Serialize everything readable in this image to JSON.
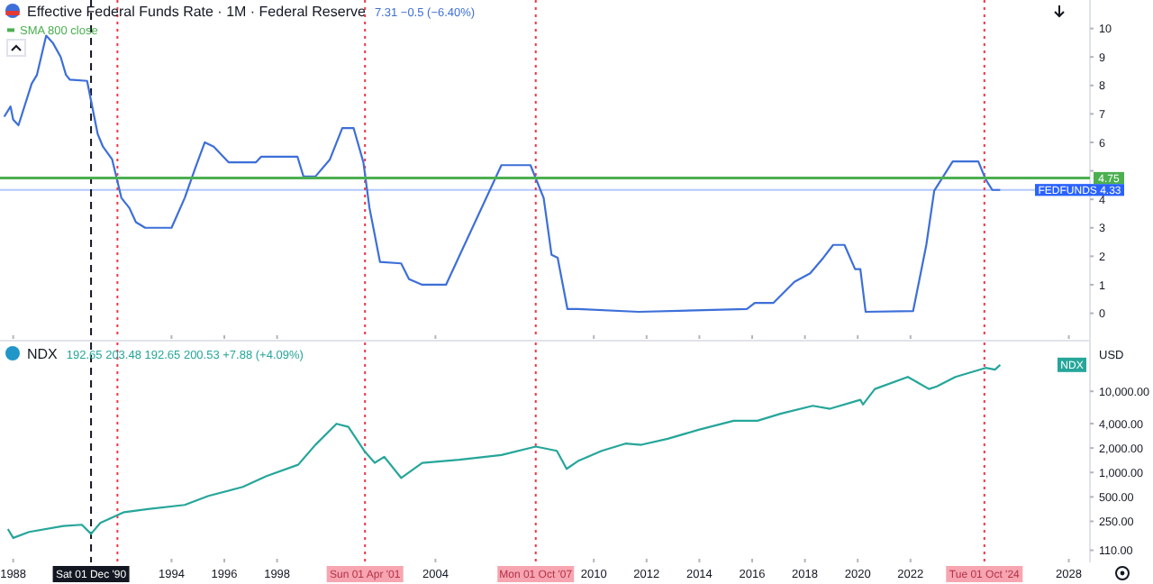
{
  "chart_data": [
    {
      "type": "line",
      "title": "Effective Federal Funds Rate · 1M · Federal Reserve",
      "subtitle": "7.31 −0.5 (−6.40%)",
      "legend": "top left",
      "tick_labels": "y",
      "x": [
        1987.66,
        1987.9,
        1988.0,
        1988.2,
        1988.7,
        1988.9,
        1989.25,
        1989.5,
        1989.8,
        1990.0,
        1990.15,
        1990.8,
        1991.2,
        1991.4,
        1991.75,
        1992.1,
        1992.4,
        1992.65,
        1993.0,
        1994.0,
        1994.5,
        1994.9,
        1995.26,
        1995.6,
        1996.16,
        1997.2,
        1997.4,
        1998.77,
        1999.0,
        1999.45,
        2000.0,
        2000.47,
        2000.9,
        2001.27,
        2001.5,
        2001.9,
        2002.7,
        2003.0,
        2003.5,
        2004.4,
        2006.5,
        2007.6,
        2008.1,
        2008.4,
        2008.63,
        2009.0,
        2009.4,
        2011.7,
        2015.8,
        2016.1,
        2016.8,
        2017.6,
        2018.2,
        2018.7,
        2019.07,
        2019.5,
        2019.9,
        2020.1,
        2020.3,
        2022.1,
        2022.6,
        2022.9,
        2023.6,
        2024.57,
        2024.85,
        2025.1,
        2025.4
      ],
      "series": [
        {
          "color": "#3d6fd8",
          "values": [
            6.9,
            7.26,
            6.8,
            6.6,
            8.06,
            8.37,
            9.75,
            9.5,
            9.0,
            8.37,
            8.2,
            8.16,
            6.3,
            5.85,
            5.4,
            4.05,
            3.7,
            3.2,
            3.0,
            3.0,
            4.05,
            5.1,
            6.0,
            5.85,
            5.3,
            5.3,
            5.5,
            5.5,
            4.8,
            4.8,
            5.4,
            6.5,
            6.5,
            5.3,
            3.7,
            1.8,
            1.75,
            1.2,
            1.0,
            1.0,
            5.2,
            5.2,
            4.05,
            2.05,
            1.95,
            0.15,
            0.15,
            0.05,
            0.15,
            0.36,
            0.36,
            1.1,
            1.4,
            1.95,
            2.4,
            2.4,
            1.55,
            1.55,
            0.05,
            0.08,
            2.4,
            4.3,
            5.33,
            5.33,
            4.7,
            4.33,
            4.33
          ]
        },
        {
          "name": "SMA 800 close",
          "color": "#4caf50",
          "x": [
            1987.5,
            2028.8
          ],
          "values": [
            4.75,
            4.75
          ],
          "value_labels": [
            null,
            "4.75"
          ]
        }
      ],
      "xlim": [
        1987.5,
        2028.8
      ],
      "xticks": [
        1988,
        1994,
        1996,
        1998,
        2004,
        2010,
        2012,
        2014,
        2016,
        2018,
        2020,
        2022,
        2028
      ],
      "ylim": [
        -0.9,
        11
      ],
      "yticks": [
        0,
        1,
        2,
        3,
        4,
        {
          "value": 5,
          "label": null
        },
        6,
        7,
        8,
        9,
        10
      ],
      "ref_lines": [
        {
          "axis": "y",
          "value": 4.33,
          "label": "FEDFUNDS 4.33",
          "color": "#2962ff"
        },
        {
          "axis": "x",
          "value": 1990.95,
          "color": "#131722",
          "line_style": "dashed"
        },
        {
          "axis": "x",
          "value": 1991.95,
          "color": "#f23645",
          "line_style": "dotted"
        },
        {
          "axis": "x",
          "value": 2001.33,
          "color": "#f23645",
          "line_style": "dotted"
        },
        {
          "axis": "x",
          "value": 2007.8,
          "color": "#f23645",
          "line_style": "dotted"
        },
        {
          "axis": "x",
          "value": 2024.8,
          "color": "#f23645",
          "line_style": "dotted"
        }
      ]
    },
    {
      "type": "line",
      "title": "NDX",
      "subtitle": "192.65 203.48 192.65 200.53 +7.88 (+4.09%)",
      "log": true,
      "annotations": [
        "USD"
      ],
      "x": [
        1987.8,
        1988.0,
        1988.6,
        1989.9,
        1990.6,
        1990.95,
        1991.3,
        1992.2,
        1993.1,
        1994.5,
        1995.4,
        1996.7,
        1997.6,
        1998.8,
        1999.45,
        2000.25,
        2000.7,
        2001.3,
        2001.7,
        2002.06,
        2002.7,
        2003.5,
        2004.9,
        2006.5,
        2007.8,
        2008.6,
        2008.97,
        2009.4,
        2010.3,
        2011.2,
        2011.8,
        2012.8,
        2013.97,
        2015.3,
        2016.2,
        2017.1,
        2018.3,
        2018.95,
        2020.1,
        2020.2,
        2020.65,
        2021.9,
        2022.7,
        2023.0,
        2023.7,
        2024.85,
        2025.2,
        2025.4
      ],
      "series": [
        {
          "name": "NDX",
          "color": "#26a69a",
          "values": [
            201,
            156,
            185,
            219,
            227,
            175,
            239,
            324,
            353,
            398,
            514,
            664,
            903,
            1247,
            2188,
            3981,
            3654,
            1849,
            1315,
            1560,
            857,
            1315,
            1432,
            1641,
            2084,
            1849,
            1107,
            1383,
            1849,
            2270,
            2193,
            2600,
            3357,
            4335,
            4335,
            5321,
            6640,
            6096,
            7870,
            6880,
            10690,
            15050,
            10690,
            11500,
            15050,
            19450,
            18500,
            21200
          ]
        }
      ],
      "xlim": [
        1987.5,
        2028.8
      ],
      "xticks": [
        1988,
        1994,
        1996,
        1998,
        2004,
        2010,
        2012,
        2014,
        2016,
        2018,
        2020,
        2022,
        2028
      ],
      "ylim": [
        78,
        40000
      ],
      "yticks": [
        {
          "value": 110,
          "label": "110.00"
        },
        {
          "value": 250,
          "label": "250.00"
        },
        {
          "value": 500,
          "label": "500.00"
        },
        {
          "value": 1000,
          "label": "1,000.00"
        },
        {
          "value": 2000,
          "label": "2,000.00"
        },
        {
          "value": 4000,
          "label": "4,000.00"
        },
        {
          "value": 10000,
          "label": "10,000.00"
        }
      ],
      "ref_lines": [
        {
          "axis": "x",
          "value": 1990.95,
          "label": "Sat 01 Dec '90",
          "color": "#131722",
          "line_style": "dashed"
        },
        {
          "axis": "x",
          "value": 1991.95,
          "color": "#f23645",
          "line_style": "dotted"
        },
        {
          "axis": "x",
          "value": 2001.33,
          "label": "Sun 01 Apr '01",
          "color": "#f23645",
          "line_style": "dotted"
        },
        {
          "axis": "x",
          "value": 2007.8,
          "label": "Mon 01 Oct '07",
          "color": "#f23645",
          "line_style": "dotted"
        },
        {
          "axis": "x",
          "value": 2024.8,
          "label": "Tue 01 Oct '24",
          "color": "#f23645",
          "line_style": "dotted"
        }
      ]
    }
  ]
}
